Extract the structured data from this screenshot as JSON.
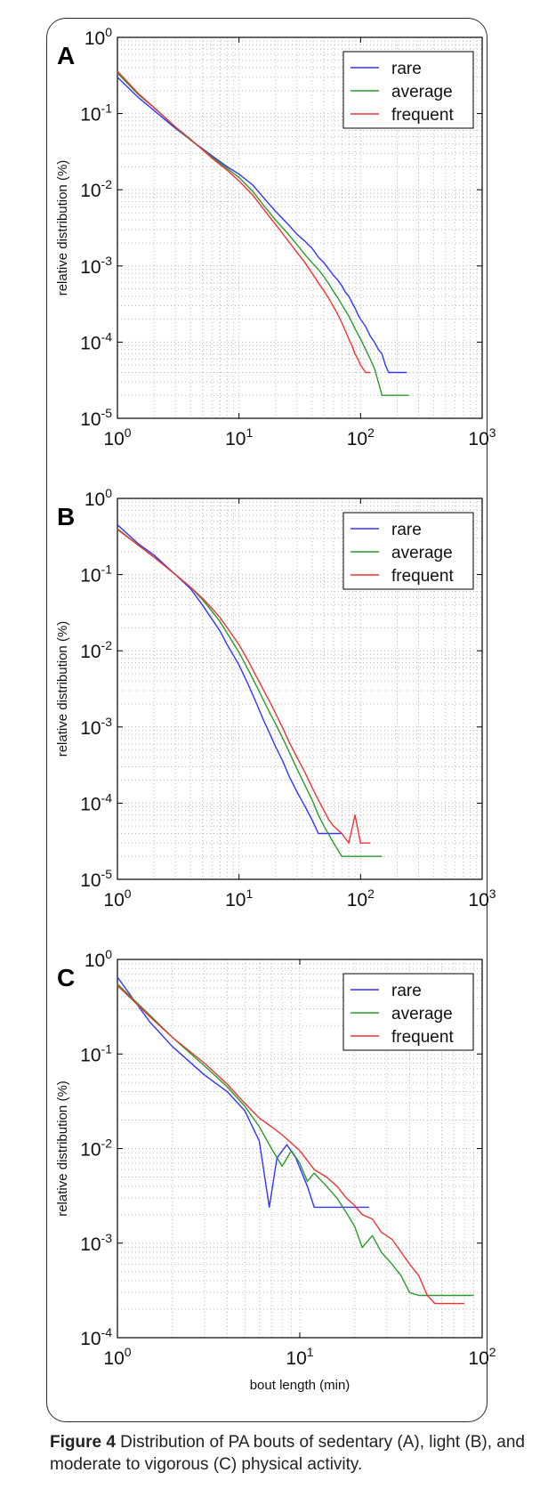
{
  "caption": {
    "label": "Figure 4",
    "text": " Distribution of PA bouts of sedentary (A), light (B), and moderate to vigorous (C) physical activity."
  },
  "chart_data": [
    {
      "type": "line",
      "panel_label": "A",
      "xscale": "log",
      "yscale": "log",
      "xlim": [
        1,
        1000
      ],
      "ylim": [
        1e-05,
        1
      ],
      "xlabel": "",
      "ylabel": "relative distribution (%)",
      "x_ticks": [
        "10^0",
        "10^1",
        "10^2",
        "10^3"
      ],
      "y_ticks": [
        "10^-5",
        "10^-4",
        "10^-3",
        "10^-2",
        "10^-1",
        "10^0"
      ],
      "grid": true,
      "legend_position": "top-right",
      "series": [
        {
          "name": "rare",
          "color": "#3333ff",
          "points": [
            [
              1,
              0.3
            ],
            [
              1.5,
              0.16
            ],
            [
              2,
              0.11
            ],
            [
              3,
              0.064
            ],
            [
              4,
              0.045
            ],
            [
              6,
              0.028
            ],
            [
              8,
              0.02
            ],
            [
              10,
              0.016
            ],
            [
              13,
              0.0115
            ],
            [
              16,
              0.0078
            ],
            [
              20,
              0.0052
            ],
            [
              25,
              0.0036
            ],
            [
              30,
              0.0026
            ],
            [
              35,
              0.0021
            ],
            [
              40,
              0.0017
            ],
            [
              45,
              0.0013
            ],
            [
              50,
              0.0011
            ],
            [
              55,
              0.0009
            ],
            [
              60,
              0.00075
            ],
            [
              65,
              0.00065
            ],
            [
              70,
              0.00055
            ],
            [
              75,
              0.00045
            ],
            [
              80,
              0.0004
            ],
            [
              85,
              0.00033
            ],
            [
              90,
              0.00028
            ],
            [
              95,
              0.00023
            ],
            [
              100,
              0.0002
            ],
            [
              110,
              0.00016
            ],
            [
              120,
              0.00012
            ],
            [
              130,
              0.0001
            ],
            [
              140,
              8e-05
            ],
            [
              150,
              7e-05
            ],
            [
              160,
              5e-05
            ],
            [
              170,
              4e-05
            ],
            [
              200,
              4e-05
            ],
            [
              240,
              4e-05
            ]
          ]
        },
        {
          "name": "average",
          "color": "#2a9a2a",
          "points": [
            [
              1,
              0.34
            ],
            [
              1.5,
              0.175
            ],
            [
              2,
              0.12
            ],
            [
              3,
              0.066
            ],
            [
              4,
              0.045
            ],
            [
              6,
              0.027
            ],
            [
              8,
              0.019
            ],
            [
              10,
              0.0145
            ],
            [
              13,
              0.0095
            ],
            [
              16,
              0.0062
            ],
            [
              20,
              0.004
            ],
            [
              25,
              0.0027
            ],
            [
              30,
              0.0019
            ],
            [
              35,
              0.0014
            ],
            [
              40,
              0.0011
            ],
            [
              45,
              0.0009
            ],
            [
              50,
              0.00072
            ],
            [
              55,
              0.00058
            ],
            [
              60,
              0.00046
            ],
            [
              65,
              0.00038
            ],
            [
              70,
              0.00031
            ],
            [
              75,
              0.00026
            ],
            [
              80,
              0.00022
            ],
            [
              90,
              0.00015
            ],
            [
              100,
              0.00011
            ],
            [
              110,
              8e-05
            ],
            [
              120,
              6e-05
            ],
            [
              130,
              4.5e-05
            ],
            [
              140,
              3e-05
            ],
            [
              150,
              2e-05
            ],
            [
              250,
              2e-05
            ]
          ]
        },
        {
          "name": "frequent",
          "color": "#ee3333",
          "points": [
            [
              1,
              0.36
            ],
            [
              1.5,
              0.18
            ],
            [
              2,
              0.12
            ],
            [
              3,
              0.067
            ],
            [
              4,
              0.046
            ],
            [
              6,
              0.026
            ],
            [
              8,
              0.018
            ],
            [
              10,
              0.013
            ],
            [
              13,
              0.0085
            ],
            [
              16,
              0.0055
            ],
            [
              20,
              0.0035
            ],
            [
              25,
              0.0022
            ],
            [
              30,
              0.0015
            ],
            [
              35,
              0.0011
            ],
            [
              40,
              0.0008
            ],
            [
              45,
              0.0006
            ],
            [
              50,
              0.00047
            ],
            [
              55,
              0.00037
            ],
            [
              60,
              0.00029
            ],
            [
              65,
              0.00023
            ],
            [
              70,
              0.00018
            ],
            [
              75,
              0.00014
            ],
            [
              80,
              0.00011
            ],
            [
              85,
              9e-05
            ],
            [
              90,
              7e-05
            ],
            [
              95,
              6e-05
            ],
            [
              100,
              5e-05
            ],
            [
              110,
              4e-05
            ],
            [
              120,
              4e-05
            ]
          ]
        }
      ]
    },
    {
      "type": "line",
      "panel_label": "B",
      "xscale": "log",
      "yscale": "log",
      "xlim": [
        1,
        1000
      ],
      "ylim": [
        1e-05,
        1
      ],
      "xlabel": "",
      "ylabel": "relative distribution (%)",
      "x_ticks": [
        "10^0",
        "10^1",
        "10^2",
        "10^3"
      ],
      "y_ticks": [
        "10^-5",
        "10^-4",
        "10^-3",
        "10^-2",
        "10^-1",
        "10^0"
      ],
      "grid": true,
      "legend_position": "top-right",
      "series": [
        {
          "name": "rare",
          "color": "#3333ff",
          "points": [
            [
              1,
              0.45
            ],
            [
              1.5,
              0.25
            ],
            [
              2,
              0.18
            ],
            [
              3,
              0.1
            ],
            [
              4,
              0.065
            ],
            [
              5,
              0.04
            ],
            [
              6,
              0.026
            ],
            [
              7,
              0.018
            ],
            [
              8,
              0.012
            ],
            [
              10,
              0.0065
            ],
            [
              12,
              0.0035
            ],
            [
              14,
              0.002
            ],
            [
              16,
              0.0012
            ],
            [
              18,
              0.0008
            ],
            [
              20,
              0.00055
            ],
            [
              23,
              0.00035
            ],
            [
              26,
              0.00022
            ],
            [
              30,
              0.00014
            ],
            [
              35,
              9e-05
            ],
            [
              40,
              6e-05
            ],
            [
              45,
              4e-05
            ],
            [
              50,
              4e-05
            ],
            [
              60,
              4e-05
            ],
            [
              70,
              4e-05
            ]
          ]
        },
        {
          "name": "average",
          "color": "#2a9a2a",
          "points": [
            [
              1,
              0.4
            ],
            [
              1.5,
              0.24
            ],
            [
              2,
              0.17
            ],
            [
              3,
              0.1
            ],
            [
              4,
              0.068
            ],
            [
              5,
              0.047
            ],
            [
              6,
              0.033
            ],
            [
              7,
              0.024
            ],
            [
              8,
              0.017
            ],
            [
              10,
              0.0095
            ],
            [
              12,
              0.0055
            ],
            [
              14,
              0.0034
            ],
            [
              16,
              0.0022
            ],
            [
              18,
              0.0015
            ],
            [
              20,
              0.0011
            ],
            [
              23,
              0.0007
            ],
            [
              26,
              0.00046
            ],
            [
              30,
              0.00028
            ],
            [
              35,
              0.00017
            ],
            [
              40,
              0.00011
            ],
            [
              45,
              7e-05
            ],
            [
              50,
              5e-05
            ],
            [
              60,
              3e-05
            ],
            [
              70,
              2e-05
            ],
            [
              150,
              2e-05
            ]
          ]
        },
        {
          "name": "frequent",
          "color": "#ee3333",
          "points": [
            [
              1,
              0.39
            ],
            [
              1.5,
              0.24
            ],
            [
              2,
              0.17
            ],
            [
              3,
              0.1
            ],
            [
              4,
              0.068
            ],
            [
              5,
              0.049
            ],
            [
              6,
              0.036
            ],
            [
              7,
              0.027
            ],
            [
              8,
              0.02
            ],
            [
              10,
              0.012
            ],
            [
              12,
              0.0072
            ],
            [
              14,
              0.0045
            ],
            [
              16,
              0.003
            ],
            [
              18,
              0.0021
            ],
            [
              20,
              0.0015
            ],
            [
              23,
              0.00095
            ],
            [
              26,
              0.00062
            ],
            [
              30,
              0.0004
            ],
            [
              35,
              0.00025
            ],
            [
              40,
              0.00016
            ],
            [
              45,
              0.00011
            ],
            [
              50,
              8e-05
            ],
            [
              55,
              6e-05
            ],
            [
              60,
              5e-05
            ],
            [
              70,
              4e-05
            ],
            [
              80,
              3e-05
            ],
            [
              90,
              7e-05
            ],
            [
              100,
              3e-05
            ],
            [
              120,
              3e-05
            ]
          ]
        }
      ]
    },
    {
      "type": "line",
      "panel_label": "C",
      "xscale": "log",
      "yscale": "log",
      "xlim": [
        1,
        100
      ],
      "ylim": [
        0.0001,
        1
      ],
      "xlabel": "bout length (min)",
      "ylabel": "relative distribution (%)",
      "x_ticks": [
        "10^0",
        "10^1",
        "10^2"
      ],
      "y_ticks": [
        "10^-4",
        "10^-3",
        "10^-2",
        "10^-1",
        "10^0"
      ],
      "grid": true,
      "legend_position": "top-right",
      "series": [
        {
          "name": "rare",
          "color": "#3333ff",
          "points": [
            [
              1,
              0.65
            ],
            [
              1.5,
              0.22
            ],
            [
              2,
              0.12
            ],
            [
              3,
              0.06
            ],
            [
              4,
              0.04
            ],
            [
              5,
              0.025
            ],
            [
              6,
              0.012
            ],
            [
              6.8,
              0.0024
            ],
            [
              7.5,
              0.008
            ],
            [
              8.5,
              0.011
            ],
            [
              9.5,
              0.008
            ],
            [
              11,
              0.004
            ],
            [
              12,
              0.0024
            ],
            [
              24,
              0.0024
            ]
          ]
        },
        {
          "name": "average",
          "color": "#2a9a2a",
          "points": [
            [
              1,
              0.55
            ],
            [
              1.5,
              0.26
            ],
            [
              2,
              0.15
            ],
            [
              3,
              0.075
            ],
            [
              4,
              0.045
            ],
            [
              5,
              0.028
            ],
            [
              6,
              0.017
            ],
            [
              7,
              0.01
            ],
            [
              8,
              0.0065
            ],
            [
              9,
              0.0095
            ],
            [
              10,
              0.007
            ],
            [
              11,
              0.0045
            ],
            [
              12,
              0.0055
            ],
            [
              14,
              0.004
            ],
            [
              16,
              0.003
            ],
            [
              18,
              0.0021
            ],
            [
              20,
              0.0015
            ],
            [
              22,
              0.0009
            ],
            [
              25,
              0.0012
            ],
            [
              28,
              0.0008
            ],
            [
              32,
              0.0006
            ],
            [
              36,
              0.00045
            ],
            [
              40,
              0.0003
            ],
            [
              45,
              0.00028
            ],
            [
              90,
              0.00028
            ]
          ]
        },
        {
          "name": "frequent",
          "color": "#ee3333",
          "points": [
            [
              1,
              0.53
            ],
            [
              1.5,
              0.25
            ],
            [
              2,
              0.15
            ],
            [
              3,
              0.08
            ],
            [
              4,
              0.048
            ],
            [
              5,
              0.03
            ],
            [
              6,
              0.021
            ],
            [
              7,
              0.017
            ],
            [
              8,
              0.014
            ],
            [
              10,
              0.0095
            ],
            [
              12,
              0.006
            ],
            [
              14,
              0.005
            ],
            [
              16,
              0.004
            ],
            [
              18,
              0.003
            ],
            [
              20,
              0.0025
            ],
            [
              22,
              0.002
            ],
            [
              25,
              0.0018
            ],
            [
              28,
              0.0013
            ],
            [
              32,
              0.0011
            ],
            [
              36,
              0.0008
            ],
            [
              40,
              0.0006
            ],
            [
              45,
              0.00045
            ],
            [
              50,
              0.00028
            ],
            [
              55,
              0.00023
            ],
            [
              80,
              0.00023
            ]
          ]
        }
      ]
    }
  ]
}
